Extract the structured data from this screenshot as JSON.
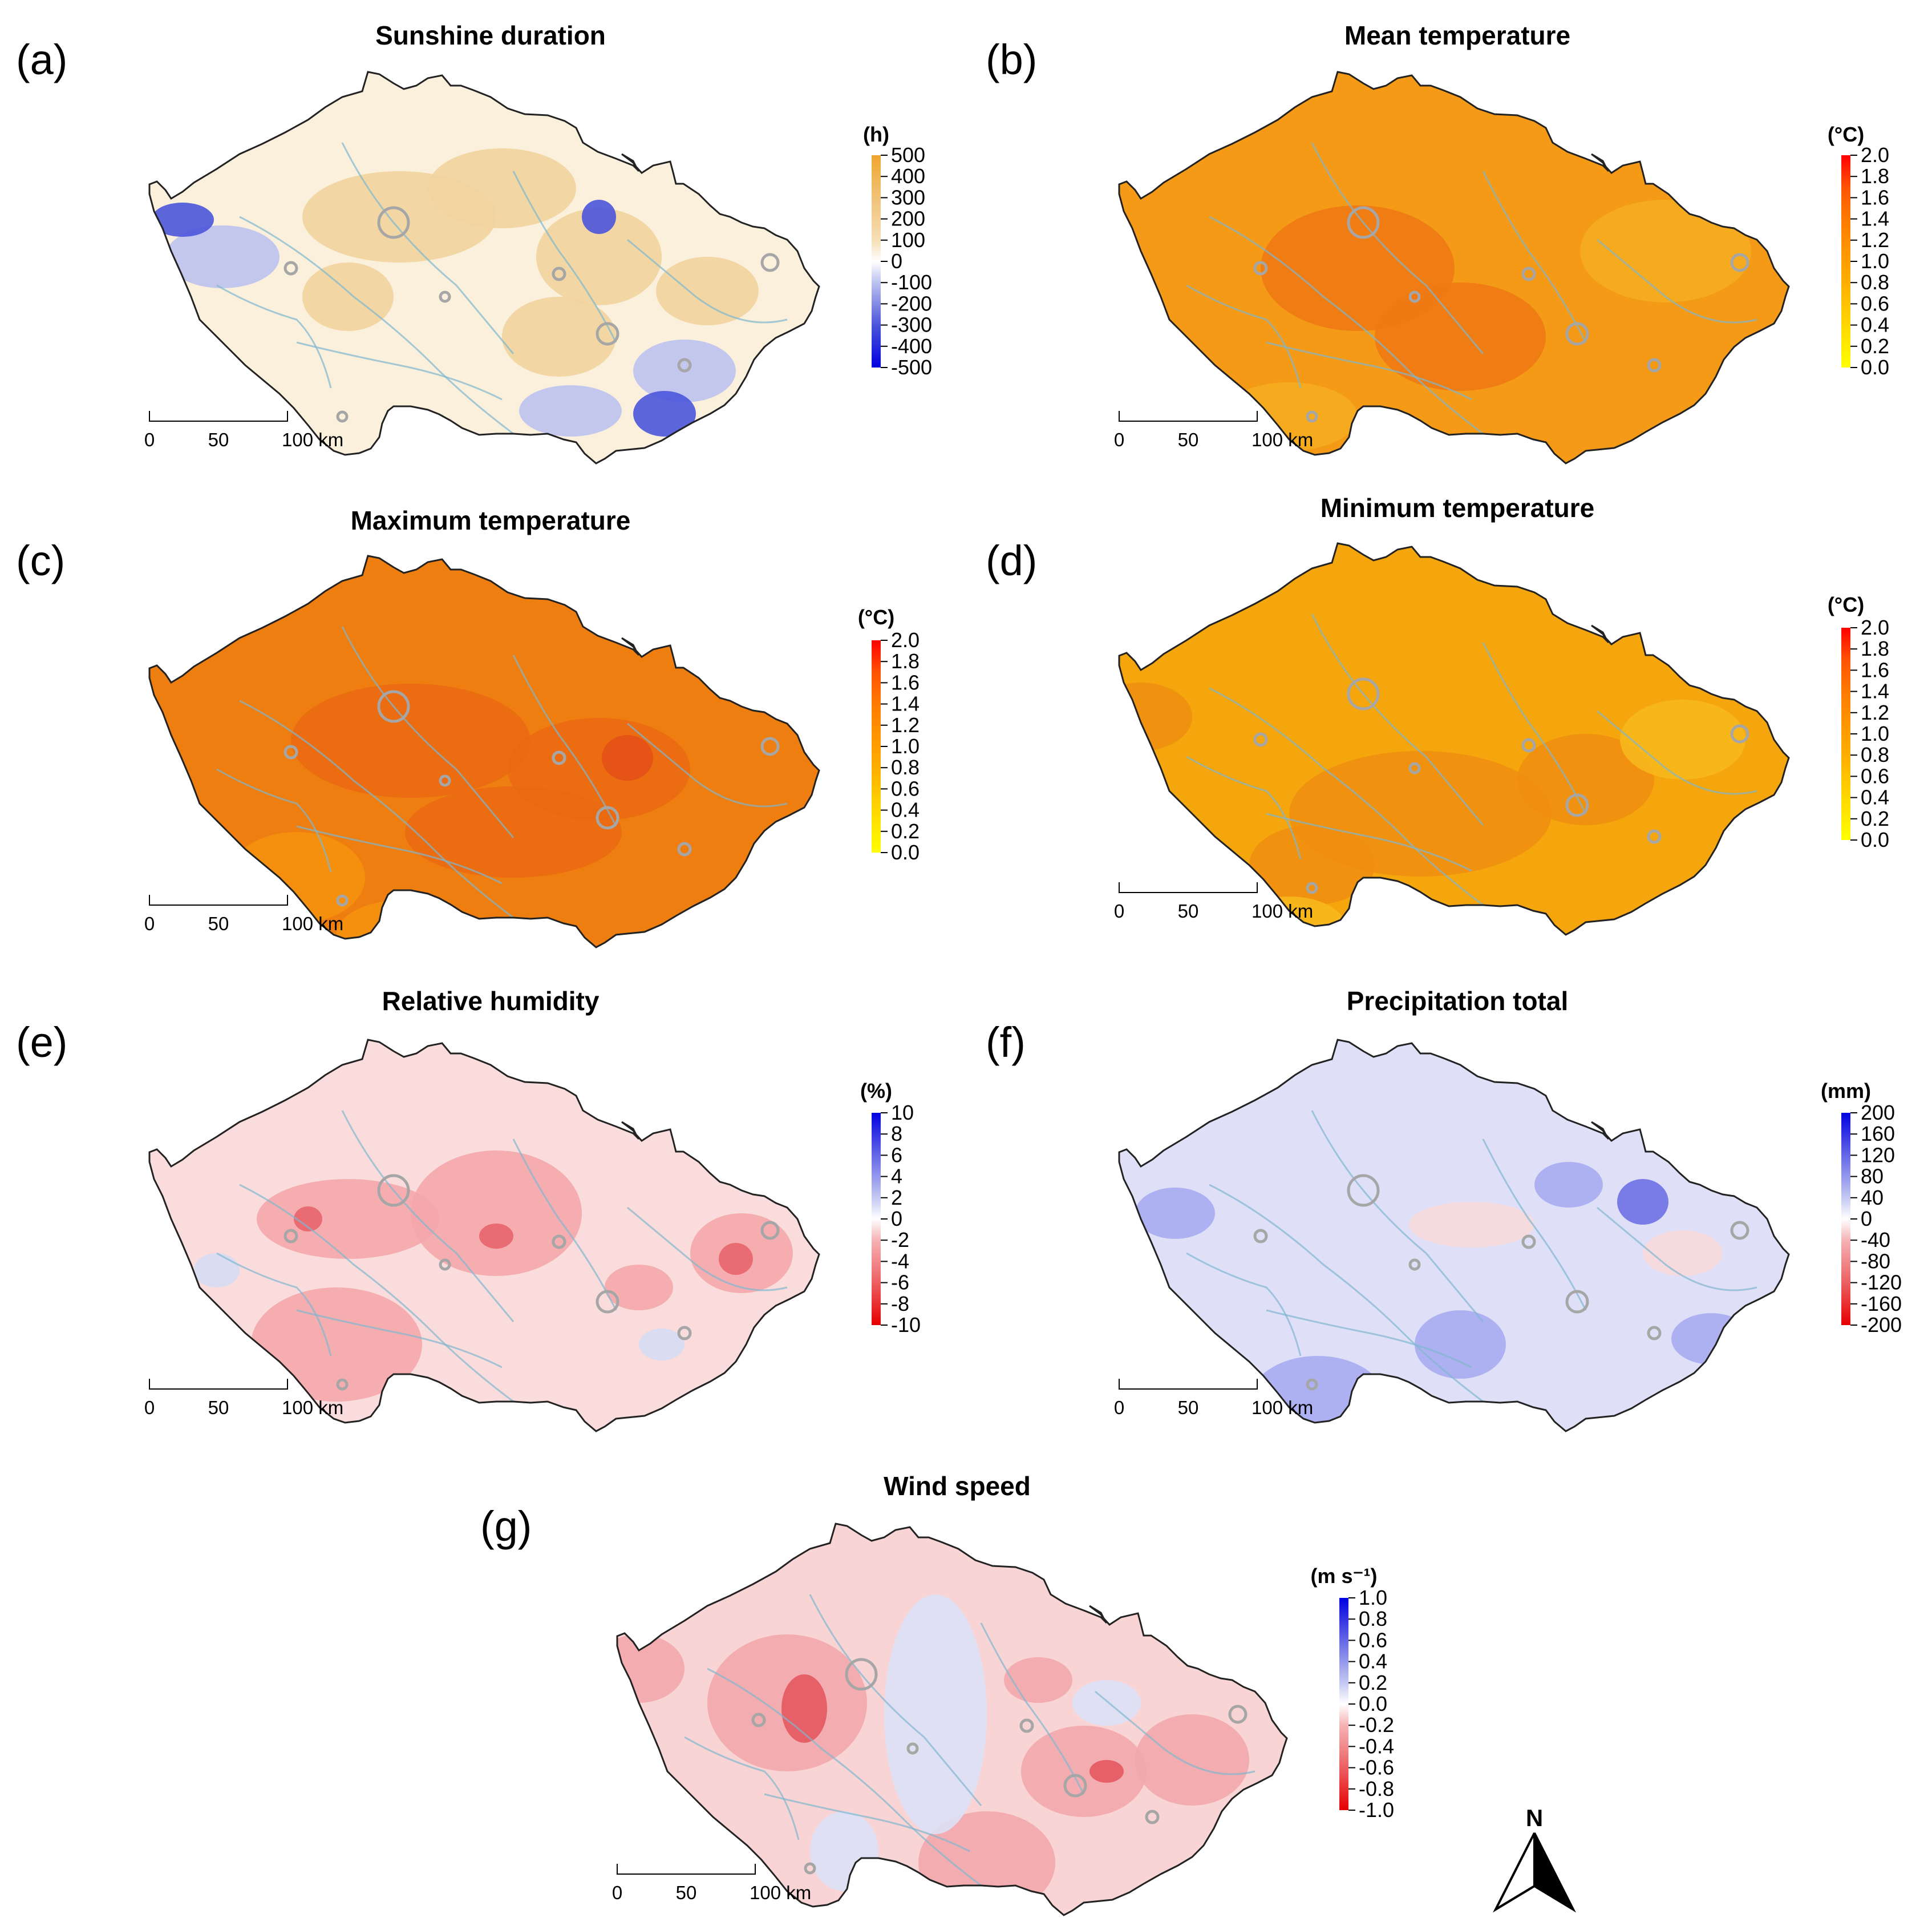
{
  "colors": {
    "warm_ramp": [
      "#ffff00",
      "#ffd700",
      "#ffae00",
      "#ff9500",
      "#ff7a00",
      "#ff5200",
      "#ff0000"
    ],
    "div_pos": "#0000e0",
    "div_neg": "#e60000",
    "sun_pos": "#f0a62e",
    "outline": "#222222",
    "rivers": "#7fb7cf",
    "cities": "#a6a6a6"
  },
  "scalebar": {
    "ticks": [
      "0",
      "50",
      "100 km"
    ]
  },
  "north_label": "N",
  "panels": [
    {
      "id": "a",
      "label": "(a)",
      "title": "Sunshine duration",
      "unit": "(h)",
      "palette": "sun",
      "ticks": [
        "500",
        "400",
        "300",
        "200",
        "100",
        "0",
        "-100",
        "-200",
        "-300",
        "-400",
        "-500"
      ],
      "base_fill": "#fbf0dc",
      "patches": [
        {
          "color": "#f1d49e",
          "items": [
            [
              700,
              380,
              170,
              80
            ],
            [
              880,
              330,
              130,
              70
            ],
            [
              610,
              520,
              80,
              60
            ],
            [
              1050,
              450,
              110,
              85
            ],
            [
              1240,
              510,
              90,
              60
            ],
            [
              980,
              590,
              100,
              70
            ]
          ]
        },
        {
          "color": "#bcc2ef",
          "items": [
            [
              390,
              450,
              100,
              55
            ],
            [
              1200,
              650,
              90,
              55
            ],
            [
              1000,
              720,
              90,
              45
            ]
          ]
        },
        {
          "color": "#4b55da",
          "items": [
            [
              1165,
              725,
              55,
              40
            ],
            [
              1050,
              380,
              30,
              30
            ],
            [
              320,
              385,
              55,
              30
            ]
          ]
        }
      ]
    },
    {
      "id": "b",
      "label": "(b)",
      "title": "Mean temperature",
      "unit": "(°C)",
      "palette": "warm",
      "ticks": [
        "2.0",
        "1.8",
        "1.6",
        "1.4",
        "1.2",
        "1.0",
        "0.8",
        "0.6",
        "0.4",
        "0.2",
        "0.0"
      ],
      "base_fill": "#f59a16",
      "patches": [
        {
          "color": "#ee7a14",
          "items": [
            [
              680,
              470,
              170,
              110
            ],
            [
              860,
              590,
              150,
              95
            ]
          ]
        },
        {
          "color": "#f6ac1e",
          "items": [
            [
              1220,
              440,
              150,
              90
            ],
            [
              560,
              730,
              120,
              60
            ]
          ]
        }
      ]
    },
    {
      "id": "c",
      "label": "(c)",
      "title": "Maximum temperature",
      "unit": "(°C)",
      "palette": "warm",
      "ticks": [
        "2.0",
        "1.8",
        "1.6",
        "1.4",
        "1.2",
        "1.0",
        "0.8",
        "0.6",
        "0.4",
        "0.2",
        "0.0"
      ],
      "base_fill": "#ef7e10",
      "patches": [
        {
          "color": "#ea6a12",
          "items": [
            [
              720,
              450,
              210,
              100
            ],
            [
              1050,
              500,
              160,
              90
            ],
            [
              900,
              610,
              190,
              80
            ]
          ]
        },
        {
          "color": "#f5920f",
          "items": [
            [
              520,
              690,
              120,
              80
            ],
            [
              700,
              790,
              110,
              60
            ]
          ]
        },
        {
          "color": "#e55117",
          "items": [
            [
              1100,
              480,
              45,
              40
            ]
          ]
        }
      ]
    },
    {
      "id": "d",
      "label": "(d)",
      "title": "Minimum temperature",
      "unit": "(°C)",
      "palette": "warm",
      "ticks": [
        "2.0",
        "1.8",
        "1.6",
        "1.4",
        "1.2",
        "1.0",
        "0.8",
        "0.6",
        "0.4",
        "0.2",
        "0.0"
      ],
      "base_fill": "#f5a60c",
      "patches": [
        {
          "color": "#f08f10",
          "items": [
            [
              790,
              600,
              230,
              110
            ],
            [
              1080,
              540,
              120,
              80
            ],
            [
              600,
              690,
              110,
              70
            ],
            [
              300,
              430,
              90,
              60
            ]
          ]
        },
        {
          "color": "#f7b81c",
          "items": [
            [
              560,
              800,
              100,
              55
            ],
            [
              1250,
              470,
              110,
              70
            ]
          ]
        }
      ]
    },
    {
      "id": "e",
      "label": "(e)",
      "title": "Relative humidity",
      "unit": "(%)",
      "palette": "div",
      "ticks": [
        "10",
        "8",
        "6",
        "4",
        "2",
        "0",
        "-2",
        "-4",
        "-6",
        "-8",
        "-10"
      ],
      "base_fill": "#fadcdc",
      "patches": [
        {
          "color": "#f4a7ab",
          "items": [
            [
              610,
              440,
              160,
              70
            ],
            [
              870,
              430,
              150,
              110
            ],
            [
              590,
              660,
              150,
              100
            ],
            [
              1300,
              500,
              90,
              70
            ],
            [
              1120,
              560,
              60,
              40
            ]
          ]
        },
        {
          "color": "#e8656d",
          "items": [
            [
              1290,
              510,
              30,
              28
            ],
            [
              870,
              470,
              30,
              22
            ],
            [
              540,
              440,
              25,
              22
            ]
          ]
        },
        {
          "color": "#d6dbf4",
          "items": [
            [
              380,
              530,
              40,
              30
            ],
            [
              1160,
              660,
              40,
              28
            ]
          ]
        }
      ]
    },
    {
      "id": "f",
      "label": "(f)",
      "title": "Precipitation total",
      "unit": "(mm)",
      "palette": "div",
      "ticks": [
        "200",
        "160",
        "120",
        "80",
        "40",
        "0",
        "-40",
        "-80",
        "-120",
        "-160",
        "-200"
      ],
      "base_fill": "#dfe0f8",
      "patches": [
        {
          "color": "#a9acef",
          "items": [
            [
              610,
              760,
              120,
              80
            ],
            [
              860,
              660,
              80,
              60
            ],
            [
              360,
              430,
              70,
              45
            ],
            [
              1050,
              380,
              60,
              40
            ],
            [
              1300,
              650,
              70,
              45
            ]
          ]
        },
        {
          "color": "#6e70e3",
          "items": [
            [
              1180,
              410,
              45,
              40
            ]
          ]
        },
        {
          "color": "#f7dada",
          "items": [
            [
              880,
              450,
              110,
              40
            ],
            [
              1250,
              500,
              70,
              40
            ]
          ]
        }
      ]
    },
    {
      "id": "g",
      "label": "(g)",
      "title": "Wind speed",
      "unit": "(m s⁻¹)",
      "palette": "div",
      "ticks": [
        "1.0",
        "0.8",
        "0.6",
        "0.4",
        "0.2",
        "0.0",
        "-0.2",
        "-0.4",
        "-0.6",
        "-0.8",
        "-1.0"
      ],
      "base_fill": "#f8d4d4",
      "patches": [
        {
          "color": "#f2a9ac",
          "items": [
            [
              560,
              440,
              140,
              120
            ],
            [
              300,
              380,
              80,
              60
            ],
            [
              1080,
              560,
              110,
              80
            ],
            [
              910,
              720,
              120,
              90
            ],
            [
              1270,
              540,
              100,
              80
            ],
            [
              1000,
              400,
              60,
              40
            ]
          ]
        },
        {
          "color": "#dde1f7",
          "items": [
            [
              820,
              460,
              90,
              210
            ],
            [
              660,
              700,
              60,
              70
            ],
            [
              1120,
              440,
              60,
              40
            ]
          ]
        },
        {
          "color": "#e4595f",
          "items": [
            [
              590,
              450,
              40,
              60
            ],
            [
              1120,
              560,
              30,
              20
            ]
          ]
        }
      ]
    }
  ]
}
